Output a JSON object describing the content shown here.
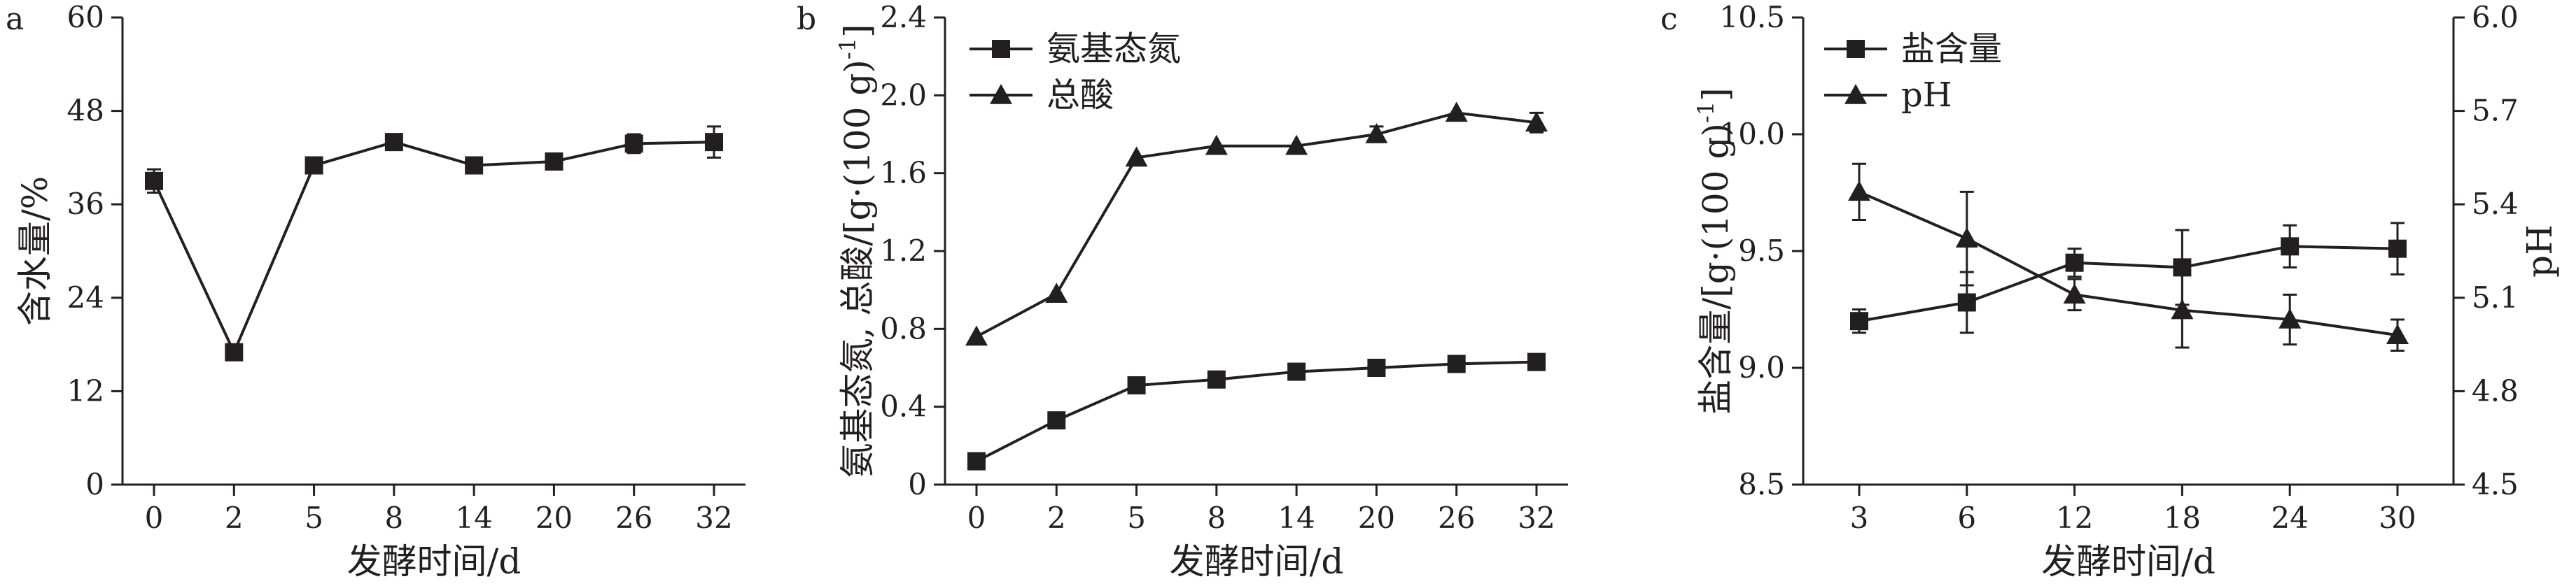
{
  "chart_data": [
    {
      "type": "line",
      "panel_label": "a",
      "categories": [
        "0",
        "2",
        "5",
        "8",
        "14",
        "20",
        "26",
        "32"
      ],
      "series": [
        {
          "values": [
            39,
            17,
            41,
            44,
            41,
            41.5,
            43.8,
            44
          ],
          "errors": [
            1.5,
            0.6,
            1.0,
            0.9,
            0.9,
            0.9,
            1.2,
            2.0
          ],
          "marker": "square"
        }
      ],
      "xlabel": "发酵时间/d",
      "ylabel": "含水量/%",
      "ylim": [
        0,
        60
      ],
      "yticks": [
        "0",
        "12",
        "24",
        "36",
        "48",
        "60"
      ],
      "grid": false
    },
    {
      "type": "line",
      "panel_label": "b",
      "categories": [
        "0",
        "2",
        "5",
        "8",
        "14",
        "20",
        "26",
        "32"
      ],
      "series": [
        {
          "name": "氨基态氮",
          "values": [
            0.12,
            0.33,
            0.51,
            0.54,
            0.58,
            0.6,
            0.62,
            0.63
          ],
          "marker": "square"
        },
        {
          "name": "总酸",
          "values": [
            0.76,
            0.98,
            1.68,
            1.74,
            1.74,
            1.8,
            1.91,
            1.86
          ],
          "errors": [
            0,
            0,
            0,
            0,
            0,
            0.04,
            0,
            0.05
          ],
          "marker": "triangle"
        }
      ],
      "xlabel": "发酵时间/d",
      "ylabel": "氨基态氮, 总酸/[g·(100 g)",
      "ylabel_sup": "-1",
      "ylabel_end": "]",
      "ylim": [
        0,
        2.4
      ],
      "yticks": [
        "0",
        "0.4",
        "0.8",
        "1.2",
        "1.6",
        "2.0",
        "2.4"
      ],
      "legend_position": "top-left",
      "grid": false
    },
    {
      "type": "line",
      "panel_label": "c",
      "categories": [
        "3",
        "6",
        "12",
        "18",
        "24",
        "30"
      ],
      "series": [
        {
          "name": "盐含量",
          "axis": "left",
          "values": [
            9.2,
            9.28,
            9.45,
            9.43,
            9.52,
            9.51
          ],
          "errors": [
            0.05,
            0.13,
            0.06,
            0.16,
            0.09,
            0.11
          ],
          "marker": "square"
        },
        {
          "name": "pH",
          "axis": "right",
          "values": [
            5.44,
            5.29,
            5.11,
            5.06,
            5.03,
            4.98
          ],
          "errors": [
            0.09,
            0.15,
            0.05,
            0.12,
            0.08,
            0.05
          ],
          "marker": "triangle"
        }
      ],
      "xlabel": "发酵时间/d",
      "ylabel": "盐含量/[g·(100 g)",
      "ylabel_sup": "-1",
      "ylabel_end": "]",
      "ylabel_right": "pH",
      "ylim": [
        8.5,
        10.5
      ],
      "yticks": [
        "8.5",
        "9.0",
        "9.5",
        "10.0",
        "10.5"
      ],
      "ylim_right": [
        4.5,
        6.0
      ],
      "yticks_right": [
        "4.5",
        "4.8",
        "5.1",
        "5.4",
        "5.7",
        "6.0"
      ],
      "legend_position": "top-left",
      "grid": false
    }
  ]
}
